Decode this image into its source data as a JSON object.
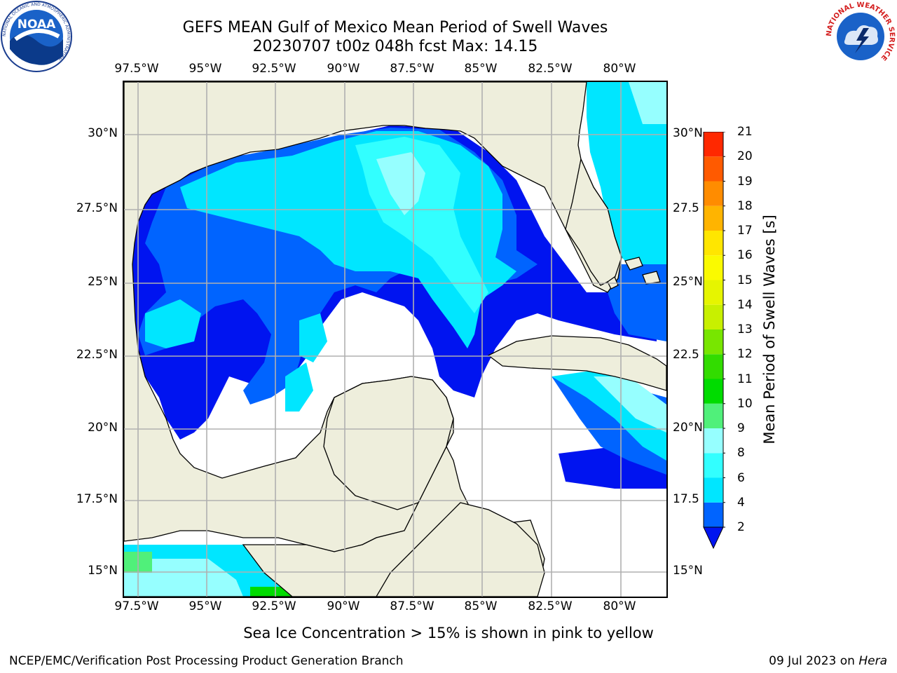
{
  "header": {
    "title_line1": "GEFS MEAN Gulf of Mexico Mean Period of Swell Waves",
    "title_line2": "20230707 t00z 048h fcst   Max: 14.15"
  },
  "logos": {
    "left": {
      "text": "NOAA",
      "ring_top": "NATIONAL OCEANIC AND ATMOSPHERIC ADMINISTRATION",
      "ring_bottom": "U.S. DEPARTMENT OF COMMERCE"
    },
    "right": {
      "ring": "NATIONAL WEATHER SERVICE"
    }
  },
  "map": {
    "lon_labels": [
      "97.5°W",
      "95°W",
      "92.5°W",
      "90°W",
      "87.5°W",
      "85°W",
      "82.5°W",
      "80°W"
    ],
    "lat_labels_left": [
      "30°N",
      "27.5°N",
      "25°N",
      "22.5°N",
      "20°N",
      "17.5°N",
      "15°N"
    ],
    "lat_labels_right": [
      "30°N",
      "27.5",
      "25°N",
      "22.5",
      "20°N",
      "17.5",
      "15°N"
    ],
    "land_color": "#eeeedc",
    "grid_color": "#b0b0b0"
  },
  "colorbar": {
    "label": "Mean Period of Swell Waves [s]",
    "ticks": [
      "2",
      "4",
      "6",
      "8",
      "9",
      "10",
      "11",
      "12",
      "13",
      "14",
      "15",
      "16",
      "17",
      "18",
      "19",
      "20",
      "21"
    ],
    "colors": [
      "#0064ff",
      "#00e6ff",
      "#32ffff",
      "#96ffff",
      "#50f07a",
      "#00dc00",
      "#32dc00",
      "#78e600",
      "#c8f000",
      "#e6f500",
      "#fafa00",
      "#ffe600",
      "#ffb400",
      "#ff8c00",
      "#ff5a00",
      "#ff2800",
      "#ff0000"
    ],
    "extend_color": "#0014f0"
  },
  "footer": {
    "note": "Sea Ice Concentration > 15% is shown in pink to yellow",
    "left": "NCEP/EMC/Verification Post Processing Product Generation Branch",
    "right_prefix": "09 Jul 2023 on ",
    "right_host": "Hera"
  }
}
